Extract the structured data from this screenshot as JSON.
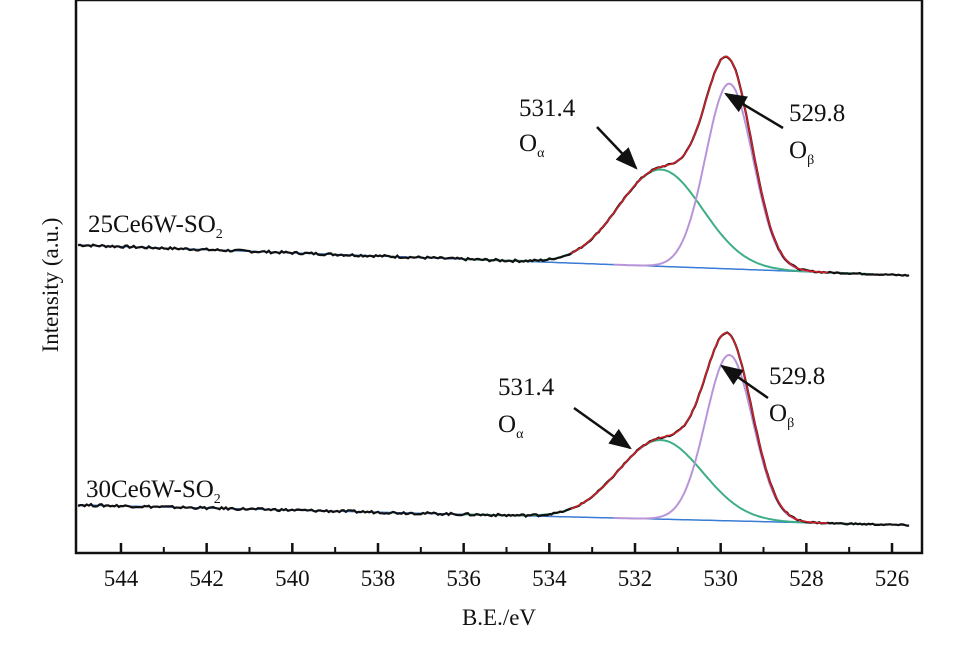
{
  "chart_data": {
    "type": "line",
    "title": "",
    "xlabel": "B.E./eV",
    "ylabel": "Intensity (a.u.)",
    "xlim": [
      545.05,
      525.3
    ],
    "ylim": [
      0,
      100
    ],
    "x_reversed": true,
    "xticks": [
      544,
      542,
      540,
      538,
      536,
      534,
      532,
      530,
      528,
      526
    ],
    "xtick_labels": [
      "544",
      "542",
      "540",
      "538",
      "536",
      "534",
      "532",
      "530",
      "528",
      "526"
    ],
    "grid": false,
    "legend": "none",
    "colors": {
      "raw": "#111111",
      "envelope": "#d0202a",
      "o_alpha": "#3fae86",
      "o_beta": "#b795d8",
      "baseline": "#3a7bd5"
    },
    "spectra": [
      {
        "name_main": "25Ce6W-SO",
        "name_sub": "2",
        "baseline": {
          "at_545": 55.7,
          "at_526": 50.3
        },
        "peaks": [
          {
            "name": "O",
            "sub": "α",
            "center": 531.4,
            "label": "531.4",
            "amplitude": 17.5,
            "sigma": 0.98
          },
          {
            "name": "O",
            "sub": "β",
            "center": 529.8,
            "label": "529.8",
            "amplitude": 33.5,
            "sigma": 0.55
          }
        ]
      },
      {
        "name_main": "30Ce6W-SO",
        "name_sub": "2",
        "baseline": {
          "at_545": 8.7,
          "at_526": 5.1
        },
        "peaks": [
          {
            "name": "O",
            "sub": "α",
            "center": 531.4,
            "label": "531.4",
            "amplitude": 14.3,
            "sigma": 0.98
          },
          {
            "name": "O",
            "sub": "β",
            "center": 529.8,
            "label": "529.8",
            "amplitude": 30.0,
            "sigma": 0.55
          }
        ]
      }
    ]
  }
}
